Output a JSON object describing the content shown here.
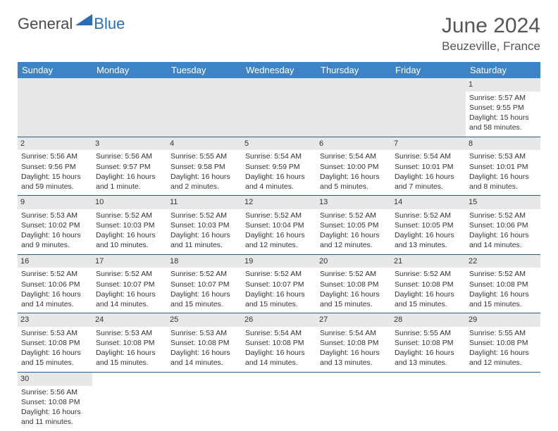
{
  "logo": {
    "general": "General",
    "blue": "Blue"
  },
  "title": "June 2024",
  "location": "Beuzeville, France",
  "colors": {
    "header_bg": "#3d84c6",
    "header_text": "#ffffff",
    "daynum_bg": "#e8e8e8",
    "border": "#2a5a8a",
    "logo_blue": "#2a6db8",
    "text": "#333333"
  },
  "weekdays": [
    "Sunday",
    "Monday",
    "Tuesday",
    "Wednesday",
    "Thursday",
    "Friday",
    "Saturday"
  ],
  "weeks": [
    [
      {
        "empty": true
      },
      {
        "empty": true
      },
      {
        "empty": true
      },
      {
        "empty": true
      },
      {
        "empty": true
      },
      {
        "empty": true
      },
      {
        "day": "1",
        "sunrise": "Sunrise: 5:57 AM",
        "sunset": "Sunset: 9:55 PM",
        "daylight": "Daylight: 15 hours and 58 minutes."
      }
    ],
    [
      {
        "day": "2",
        "sunrise": "Sunrise: 5:56 AM",
        "sunset": "Sunset: 9:56 PM",
        "daylight": "Daylight: 15 hours and 59 minutes."
      },
      {
        "day": "3",
        "sunrise": "Sunrise: 5:56 AM",
        "sunset": "Sunset: 9:57 PM",
        "daylight": "Daylight: 16 hours and 1 minute."
      },
      {
        "day": "4",
        "sunrise": "Sunrise: 5:55 AM",
        "sunset": "Sunset: 9:58 PM",
        "daylight": "Daylight: 16 hours and 2 minutes."
      },
      {
        "day": "5",
        "sunrise": "Sunrise: 5:54 AM",
        "sunset": "Sunset: 9:59 PM",
        "daylight": "Daylight: 16 hours and 4 minutes."
      },
      {
        "day": "6",
        "sunrise": "Sunrise: 5:54 AM",
        "sunset": "Sunset: 10:00 PM",
        "daylight": "Daylight: 16 hours and 5 minutes."
      },
      {
        "day": "7",
        "sunrise": "Sunrise: 5:54 AM",
        "sunset": "Sunset: 10:01 PM",
        "daylight": "Daylight: 16 hours and 7 minutes."
      },
      {
        "day": "8",
        "sunrise": "Sunrise: 5:53 AM",
        "sunset": "Sunset: 10:01 PM",
        "daylight": "Daylight: 16 hours and 8 minutes."
      }
    ],
    [
      {
        "day": "9",
        "sunrise": "Sunrise: 5:53 AM",
        "sunset": "Sunset: 10:02 PM",
        "daylight": "Daylight: 16 hours and 9 minutes."
      },
      {
        "day": "10",
        "sunrise": "Sunrise: 5:52 AM",
        "sunset": "Sunset: 10:03 PM",
        "daylight": "Daylight: 16 hours and 10 minutes."
      },
      {
        "day": "11",
        "sunrise": "Sunrise: 5:52 AM",
        "sunset": "Sunset: 10:03 PM",
        "daylight": "Daylight: 16 hours and 11 minutes."
      },
      {
        "day": "12",
        "sunrise": "Sunrise: 5:52 AM",
        "sunset": "Sunset: 10:04 PM",
        "daylight": "Daylight: 16 hours and 12 minutes."
      },
      {
        "day": "13",
        "sunrise": "Sunrise: 5:52 AM",
        "sunset": "Sunset: 10:05 PM",
        "daylight": "Daylight: 16 hours and 12 minutes."
      },
      {
        "day": "14",
        "sunrise": "Sunrise: 5:52 AM",
        "sunset": "Sunset: 10:05 PM",
        "daylight": "Daylight: 16 hours and 13 minutes."
      },
      {
        "day": "15",
        "sunrise": "Sunrise: 5:52 AM",
        "sunset": "Sunset: 10:06 PM",
        "daylight": "Daylight: 16 hours and 14 minutes."
      }
    ],
    [
      {
        "day": "16",
        "sunrise": "Sunrise: 5:52 AM",
        "sunset": "Sunset: 10:06 PM",
        "daylight": "Daylight: 16 hours and 14 minutes."
      },
      {
        "day": "17",
        "sunrise": "Sunrise: 5:52 AM",
        "sunset": "Sunset: 10:07 PM",
        "daylight": "Daylight: 16 hours and 14 minutes."
      },
      {
        "day": "18",
        "sunrise": "Sunrise: 5:52 AM",
        "sunset": "Sunset: 10:07 PM",
        "daylight": "Daylight: 16 hours and 15 minutes."
      },
      {
        "day": "19",
        "sunrise": "Sunrise: 5:52 AM",
        "sunset": "Sunset: 10:07 PM",
        "daylight": "Daylight: 16 hours and 15 minutes."
      },
      {
        "day": "20",
        "sunrise": "Sunrise: 5:52 AM",
        "sunset": "Sunset: 10:08 PM",
        "daylight": "Daylight: 16 hours and 15 minutes."
      },
      {
        "day": "21",
        "sunrise": "Sunrise: 5:52 AM",
        "sunset": "Sunset: 10:08 PM",
        "daylight": "Daylight: 16 hours and 15 minutes."
      },
      {
        "day": "22",
        "sunrise": "Sunrise: 5:52 AM",
        "sunset": "Sunset: 10:08 PM",
        "daylight": "Daylight: 16 hours and 15 minutes."
      }
    ],
    [
      {
        "day": "23",
        "sunrise": "Sunrise: 5:53 AM",
        "sunset": "Sunset: 10:08 PM",
        "daylight": "Daylight: 16 hours and 15 minutes."
      },
      {
        "day": "24",
        "sunrise": "Sunrise: 5:53 AM",
        "sunset": "Sunset: 10:08 PM",
        "daylight": "Daylight: 16 hours and 15 minutes."
      },
      {
        "day": "25",
        "sunrise": "Sunrise: 5:53 AM",
        "sunset": "Sunset: 10:08 PM",
        "daylight": "Daylight: 16 hours and 14 minutes."
      },
      {
        "day": "26",
        "sunrise": "Sunrise: 5:54 AM",
        "sunset": "Sunset: 10:08 PM",
        "daylight": "Daylight: 16 hours and 14 minutes."
      },
      {
        "day": "27",
        "sunrise": "Sunrise: 5:54 AM",
        "sunset": "Sunset: 10:08 PM",
        "daylight": "Daylight: 16 hours and 13 minutes."
      },
      {
        "day": "28",
        "sunrise": "Sunrise: 5:55 AM",
        "sunset": "Sunset: 10:08 PM",
        "daylight": "Daylight: 16 hours and 13 minutes."
      },
      {
        "day": "29",
        "sunrise": "Sunrise: 5:55 AM",
        "sunset": "Sunset: 10:08 PM",
        "daylight": "Daylight: 16 hours and 12 minutes."
      }
    ],
    [
      {
        "day": "30",
        "sunrise": "Sunrise: 5:56 AM",
        "sunset": "Sunset: 10:08 PM",
        "daylight": "Daylight: 16 hours and 11 minutes."
      },
      {
        "empty": true
      },
      {
        "empty": true
      },
      {
        "empty": true
      },
      {
        "empty": true
      },
      {
        "empty": true
      },
      {
        "empty": true
      }
    ]
  ]
}
